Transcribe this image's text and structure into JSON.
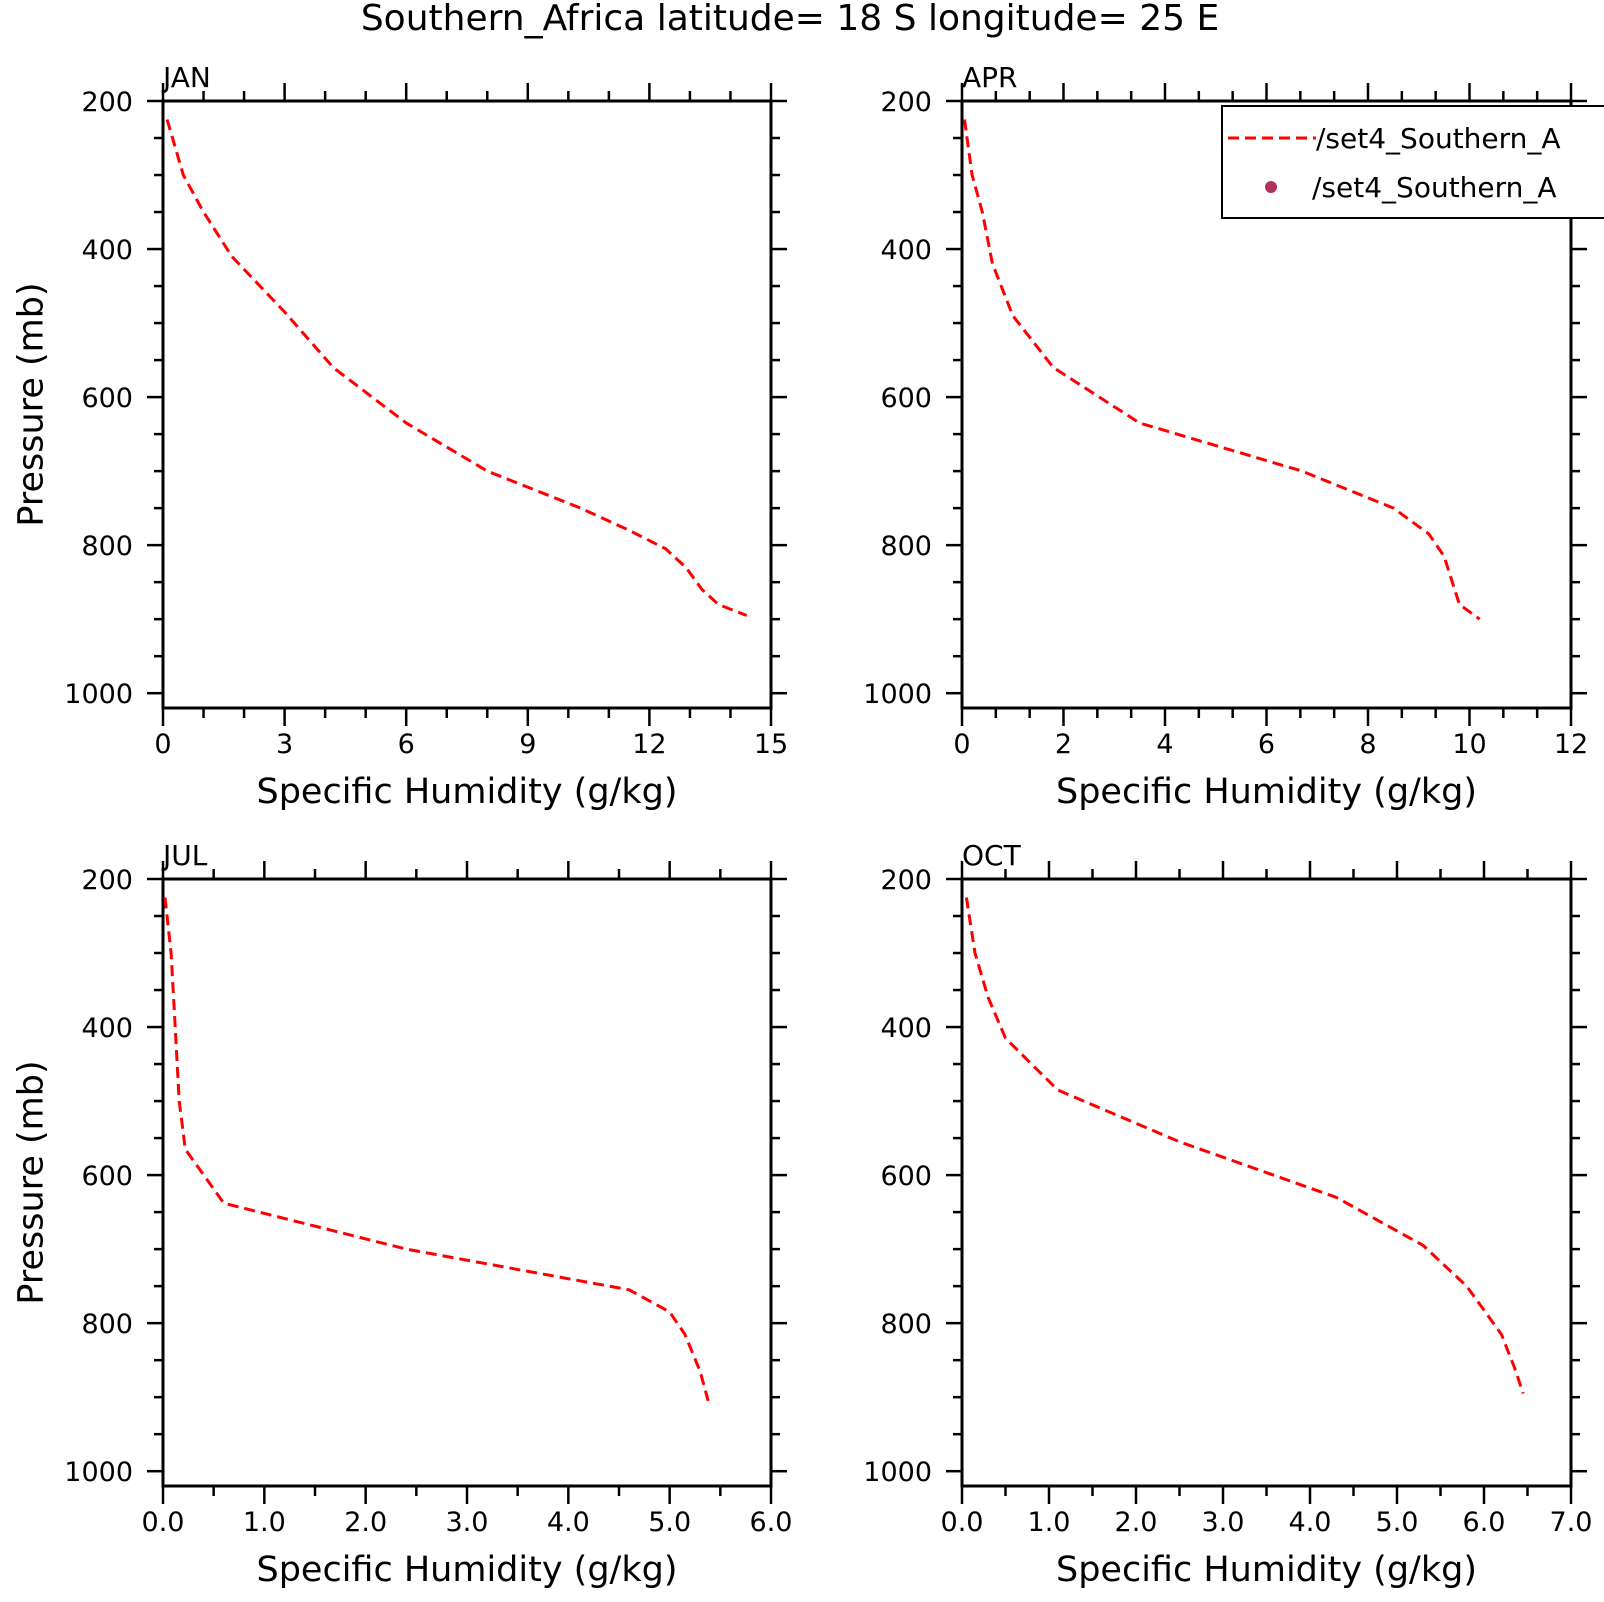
{
  "title": "Southern_Africa  latitude= 18 S longitude= 25 E",
  "colors": {
    "series_line": "#ff0000",
    "series_marker": "#b03060"
  },
  "legend": {
    "placement": "top-right",
    "entries": [
      {
        "label": "/set4_Southern_A",
        "style": "dashed-line",
        "color": "#ff0000"
      },
      {
        "label": "/set4_Southern_A",
        "style": "dot",
        "color": "#b03060"
      }
    ]
  },
  "chart_data": [
    {
      "type": "line",
      "title": "JAN",
      "xlabel": "Specific Humidity (g/kg)",
      "ylabel": "Pressure (mb)",
      "xlim": [
        0,
        15
      ],
      "ylim": [
        200,
        1020
      ],
      "y_inverted": true,
      "xticks": [
        "0",
        "3",
        "6",
        "9",
        "12",
        "15"
      ],
      "yticks": [
        "200",
        "400",
        "600",
        "800",
        "1000"
      ],
      "series": [
        {
          "style": "dashed",
          "color": "#ff0000",
          "x": [
            0.1,
            0.5,
            1.0,
            1.7,
            3.0,
            4.2,
            6.0,
            8.0,
            10.3,
            11.5,
            12.4,
            12.9,
            13.3,
            13.7,
            14.4
          ],
          "y": [
            225,
            300,
            350,
            410,
            485,
            560,
            635,
            700,
            750,
            780,
            805,
            830,
            860,
            880,
            895
          ]
        }
      ]
    },
    {
      "type": "line",
      "title": "APR",
      "xlabel": "Specific Humidity (g/kg)",
      "ylabel": "",
      "xlim": [
        0,
        12
      ],
      "ylim": [
        200,
        1020
      ],
      "y_inverted": true,
      "xticks": [
        "0",
        "2",
        "4",
        "6",
        "8",
        "10",
        "12"
      ],
      "yticks": [
        "200",
        "400",
        "600",
        "800",
        "1000"
      ],
      "series": [
        {
          "style": "dashed",
          "color": "#ff0000",
          "x": [
            0.05,
            0.2,
            0.4,
            0.6,
            1.0,
            1.8,
            3.5,
            6.7,
            8.5,
            9.2,
            9.5,
            9.8,
            10.2
          ],
          "y": [
            225,
            300,
            350,
            420,
            490,
            560,
            635,
            700,
            750,
            785,
            815,
            880,
            900
          ]
        }
      ]
    },
    {
      "type": "line",
      "title": "JUL",
      "xlabel": "Specific Humidity (g/kg)",
      "ylabel": "Pressure (mb)",
      "xlim": [
        0,
        6
      ],
      "ylim": [
        200,
        1020
      ],
      "y_inverted": true,
      "xticks": [
        "0.0",
        "1.0",
        "2.0",
        "3.0",
        "4.0",
        "5.0",
        "6.0"
      ],
      "yticks": [
        "200",
        "400",
        "600",
        "800",
        "1000"
      ],
      "series": [
        {
          "style": "dashed",
          "color": "#ff0000",
          "x": [
            0.02,
            0.08,
            0.12,
            0.16,
            0.22,
            0.6,
            2.4,
            4.6,
            5.0,
            5.15,
            5.3,
            5.38
          ],
          "y": [
            225,
            300,
            400,
            500,
            565,
            638,
            700,
            755,
            785,
            815,
            865,
            905
          ]
        }
      ]
    },
    {
      "type": "line",
      "title": "OCT",
      "xlabel": "Specific Humidity (g/kg)",
      "ylabel": "",
      "xlim": [
        0,
        7
      ],
      "ylim": [
        200,
        1020
      ],
      "y_inverted": true,
      "xticks": [
        "0.0",
        "1.0",
        "2.0",
        "3.0",
        "4.0",
        "5.0",
        "6.0",
        "7.0"
      ],
      "yticks": [
        "200",
        "400",
        "600",
        "800",
        "1000"
      ],
      "series": [
        {
          "style": "dashed",
          "color": "#ff0000",
          "x": [
            0.05,
            0.15,
            0.3,
            0.5,
            1.1,
            2.5,
            4.3,
            5.3,
            5.8,
            6.2,
            6.35,
            6.45
          ],
          "y": [
            225,
            300,
            360,
            415,
            485,
            555,
            630,
            695,
            750,
            815,
            860,
            895
          ]
        }
      ]
    }
  ]
}
